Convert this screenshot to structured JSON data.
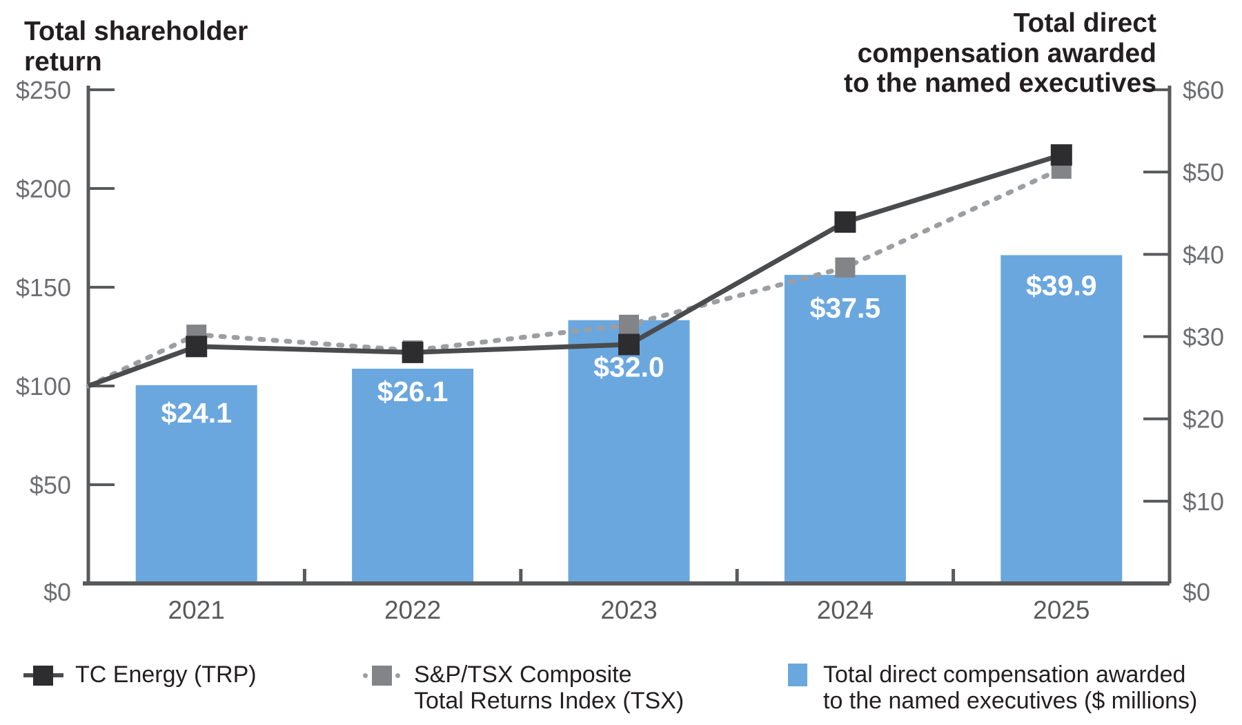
{
  "chart_data": {
    "type": "combo-bar-line",
    "categories": [
      "2021",
      "2022",
      "2023",
      "2024",
      "2025"
    ],
    "left_axis": {
      "title": "Total shareholder\nreturn",
      "range": [
        0,
        250
      ],
      "tick_step": 50,
      "tick_labels": [
        "$250",
        "$200",
        "$150",
        "$100",
        "$50",
        "$0"
      ]
    },
    "right_axis": {
      "title": "Total direct\ncompensation awarded\nto the named executives",
      "range": [
        0,
        60
      ],
      "tick_step": 10,
      "tick_labels": [
        "$60",
        "$50",
        "$40",
        "$30",
        "$20",
        "$10",
        "$0"
      ]
    },
    "bar_series": {
      "name": "Total direct compensation awarded to the named executives ($ millions)",
      "axis": "right",
      "values": [
        24.1,
        26.1,
        32.0,
        37.5,
        39.9
      ],
      "labels": [
        "$24.1",
        "$26.1",
        "$32.0",
        "$37.5",
        "$39.9"
      ],
      "color": "#6aa7de",
      "label_color": "#ffffff"
    },
    "line_series": [
      {
        "name": "S&P/TSX Composite Total Returns Index (TSX)",
        "axis": "left",
        "style": "dashed",
        "start_value": 100,
        "values": [
          126,
          118,
          131,
          160,
          210
        ],
        "line_color": "#9c9ea1",
        "marker_color": "#828487"
      },
      {
        "name": "TC Energy (TRP)",
        "axis": "left",
        "style": "solid",
        "start_value": 100,
        "values": [
          120,
          117,
          121,
          183,
          217
        ],
        "line_color": "#4a4b4d",
        "marker_color": "#2d2d2f"
      }
    ],
    "legend": [
      {
        "label": "TC Energy (TRP)",
        "marker": "solid-line-square"
      },
      {
        "label": "S&P/TSX Composite\nTotal Returns Index (TSX)",
        "marker": "dashed-line-square"
      },
      {
        "label": "Total direct compensation awarded\nto the named executives ($ millions)",
        "marker": "blue-square"
      }
    ],
    "grid": false,
    "legend_position": "bottom",
    "colors": {
      "axis": "#58595b",
      "tick_label": "#6d6e71",
      "year_label": "#58595b",
      "title_text": "#231f20",
      "bar": "#6aa7de"
    }
  }
}
